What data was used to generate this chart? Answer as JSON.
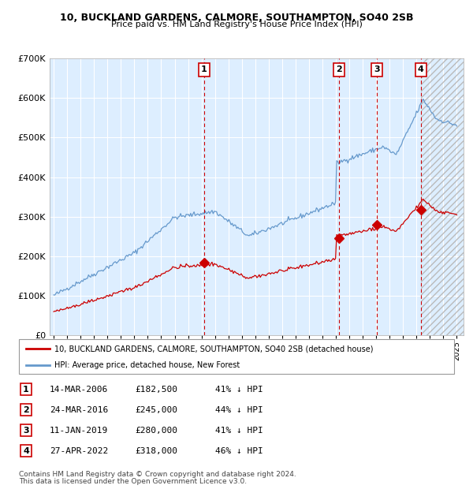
{
  "title1": "10, BUCKLAND GARDENS, CALMORE, SOUTHAMPTON, SO40 2SB",
  "title2": "Price paid vs. HM Land Registry's House Price Index (HPI)",
  "ylim": [
    0,
    700000
  ],
  "yticks": [
    0,
    100000,
    200000,
    300000,
    400000,
    500000,
    600000,
    700000
  ],
  "ytick_labels": [
    "£0",
    "£100K",
    "£200K",
    "£300K",
    "£400K",
    "£500K",
    "£600K",
    "£700K"
  ],
  "xlim_start": 1994.7,
  "xlim_end": 2025.5,
  "background_color": "#ffffff",
  "plot_bg_color": "#ddeeff",
  "grid_color": "#ffffff",
  "hpi_color": "#6699cc",
  "price_color": "#cc0000",
  "vline_color": "#cc0000",
  "sale_dates_decimal": [
    2006.2,
    2016.23,
    2019.03,
    2022.32
  ],
  "sale_prices": [
    182500,
    245000,
    280000,
    318000
  ],
  "sale_labels": [
    "1",
    "2",
    "3",
    "4"
  ],
  "legend_label_price": "10, BUCKLAND GARDENS, CALMORE, SOUTHAMPTON, SO40 2SB (detached house)",
  "legend_label_hpi": "HPI: Average price, detached house, New Forest",
  "table_entries": [
    {
      "num": "1",
      "date": "14-MAR-2006",
      "price": "£182,500",
      "pct": "41% ↓ HPI"
    },
    {
      "num": "2",
      "date": "24-MAR-2016",
      "price": "£245,000",
      "pct": "44% ↓ HPI"
    },
    {
      "num": "3",
      "date": "11-JAN-2019",
      "price": "£280,000",
      "pct": "41% ↓ HPI"
    },
    {
      "num": "4",
      "date": "27-APR-2022",
      "price": "£318,000",
      "pct": "46% ↓ HPI"
    }
  ],
  "footnote1": "Contains HM Land Registry data © Crown copyright and database right 2024.",
  "footnote2": "This data is licensed under the Open Government Licence v3.0."
}
